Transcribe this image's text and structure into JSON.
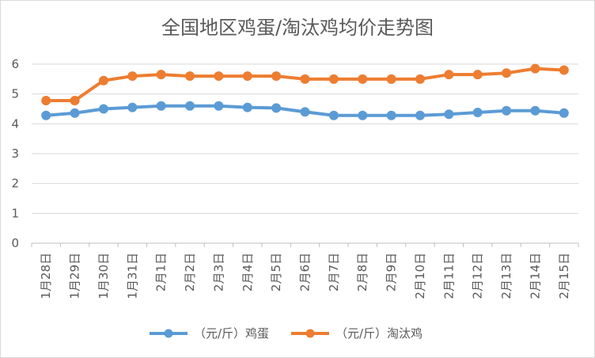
{
  "chart_data": {
    "type": "line",
    "title": "全国地区鸡蛋/淘汰鸡均价走势图",
    "xlabel": "",
    "ylabel": "",
    "ylim": [
      0,
      6
    ],
    "yticks": [
      0,
      1,
      2,
      3,
      4,
      5,
      6
    ],
    "categories": [
      "1月28日",
      "1月29日",
      "1月30日",
      "1月31日",
      "2月1日",
      "2月2日",
      "2月3日",
      "2月4日",
      "2月5日",
      "2月6日",
      "2月7日",
      "2月8日",
      "2月9日",
      "2月10日",
      "2月11日",
      "2月12日",
      "2月13日",
      "2月14日",
      "2月15日"
    ],
    "grid": true,
    "legend_position": "bottom",
    "series": [
      {
        "name": "（元/斤）鸡蛋",
        "color": "#5b9bd5",
        "values": [
          4.28,
          4.36,
          4.5,
          4.55,
          4.6,
          4.6,
          4.6,
          4.55,
          4.53,
          4.4,
          4.28,
          4.28,
          4.28,
          4.28,
          4.32,
          4.38,
          4.44,
          4.44,
          4.36
        ]
      },
      {
        "name": "（元/斤）淘汰鸡",
        "color": "#ed7d31",
        "values": [
          4.78,
          4.78,
          5.45,
          5.6,
          5.65,
          5.6,
          5.6,
          5.6,
          5.6,
          5.5,
          5.5,
          5.5,
          5.5,
          5.5,
          5.65,
          5.65,
          5.7,
          5.85,
          5.8
        ]
      }
    ]
  }
}
